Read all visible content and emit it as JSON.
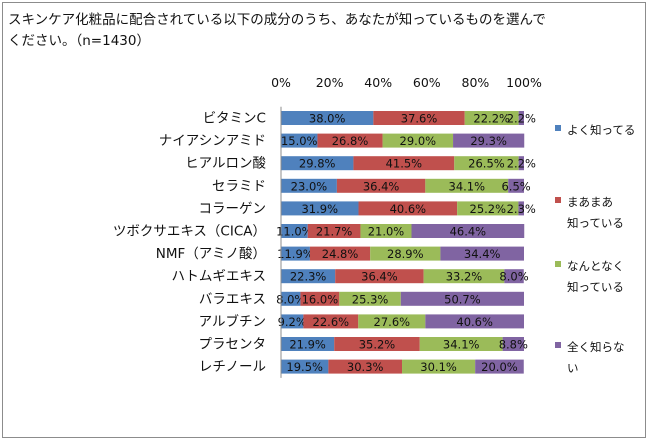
{
  "question": "スキンケア化粧品に配合されている以下の成分のうち、あなたが知っているものを選んでください。（n=1430）",
  "chart_data": {
    "type": "bar",
    "orientation": "horizontal",
    "stacked": true,
    "percent_stacked": true,
    "xlim": [
      0,
      100
    ],
    "x_ticks": [
      "0%",
      "20%",
      "40%",
      "60%",
      "80%",
      "100%"
    ],
    "grid": false,
    "legend_position": "right",
    "categories": [
      "ビタミンC",
      "ナイアシンアミド",
      "ヒアルロン酸",
      "セラミド",
      "コラーゲン",
      "ツボクサエキス（CICA）",
      "NMF（アミノ酸）",
      "ハトムギエキス",
      "バラエキス",
      "アルブチン",
      "プラセンタ",
      "レチノール"
    ],
    "series": [
      {
        "name": "よく知ってる",
        "color": "#4f81bd",
        "values": [
          38.0,
          15.0,
          29.8,
          23.0,
          31.9,
          11.0,
          11.9,
          22.3,
          8.0,
          9.2,
          21.9,
          19.5
        ]
      },
      {
        "name": "まあまあ知っている",
        "color": "#c0504d",
        "values": [
          37.6,
          26.8,
          41.5,
          36.4,
          40.6,
          21.7,
          24.8,
          36.4,
          16.0,
          22.6,
          35.2,
          30.3
        ]
      },
      {
        "name": "なんとなく知っている",
        "color": "#9bbb59",
        "values": [
          22.2,
          29.0,
          26.5,
          34.1,
          25.2,
          21.0,
          28.9,
          33.2,
          25.3,
          27.6,
          34.1,
          30.1
        ]
      },
      {
        "name": "全く知らない",
        "color": "#8064a2",
        "values": [
          2.2,
          29.3,
          2.2,
          6.5,
          2.3,
          46.4,
          34.4,
          8.0,
          50.7,
          40.6,
          8.8,
          20.0
        ]
      }
    ]
  },
  "legend": [
    {
      "lines": [
        "よく知ってる"
      ]
    },
    {
      "lines": [
        "まあまあ",
        "知っている"
      ]
    },
    {
      "lines": [
        "なんとなく",
        "知っている"
      ]
    },
    {
      "lines": [
        "全く知らな",
        "い"
      ]
    }
  ]
}
